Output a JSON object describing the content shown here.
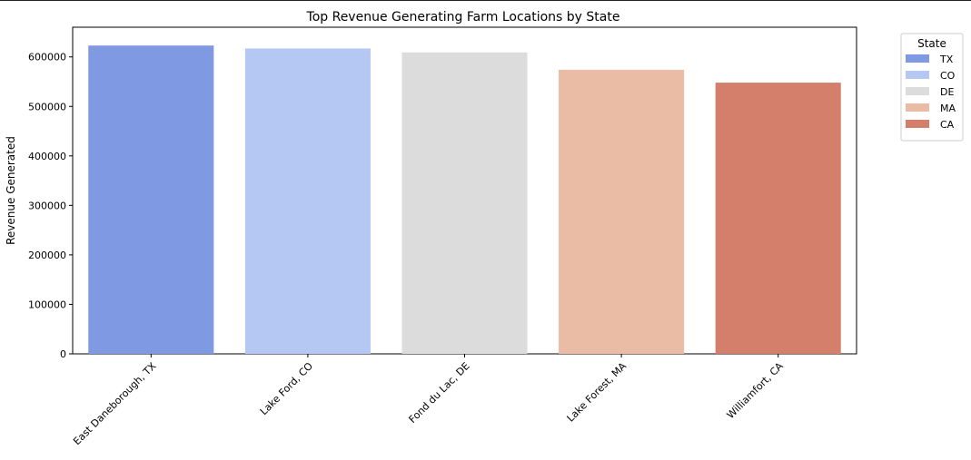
{
  "chart_data": {
    "type": "bar",
    "title": "Top Revenue Generating Farm Locations by State",
    "xlabel": "",
    "ylabel": "Revenue Generated",
    "categories": [
      "East Daneborough, TX",
      "Lake Ford, CO",
      "Fond du Lac, DE",
      "Lake Forest, MA",
      "Williamfort, CA"
    ],
    "values": [
      623000,
      617000,
      609000,
      574000,
      548000
    ],
    "hue": [
      "TX",
      "CO",
      "DE",
      "MA",
      "CA"
    ],
    "ylim": [
      0,
      660000
    ],
    "yticks": [
      0,
      100000,
      200000,
      300000,
      400000,
      500000,
      600000
    ],
    "ytick_labels": [
      "0",
      "100000",
      "200000",
      "300000",
      "400000",
      "500000",
      "600000"
    ],
    "grid": false,
    "legend": {
      "title": "State",
      "placement": "outside-top-right",
      "entries": [
        {
          "label": "TX",
          "color": "#7f99e3"
        },
        {
          "label": "CO",
          "color": "#b4c8f3"
        },
        {
          "label": "DE",
          "color": "#dcdcdc"
        },
        {
          "label": "MA",
          "color": "#eabca5"
        },
        {
          "label": "CA",
          "color": "#d47f6b"
        }
      ]
    }
  }
}
